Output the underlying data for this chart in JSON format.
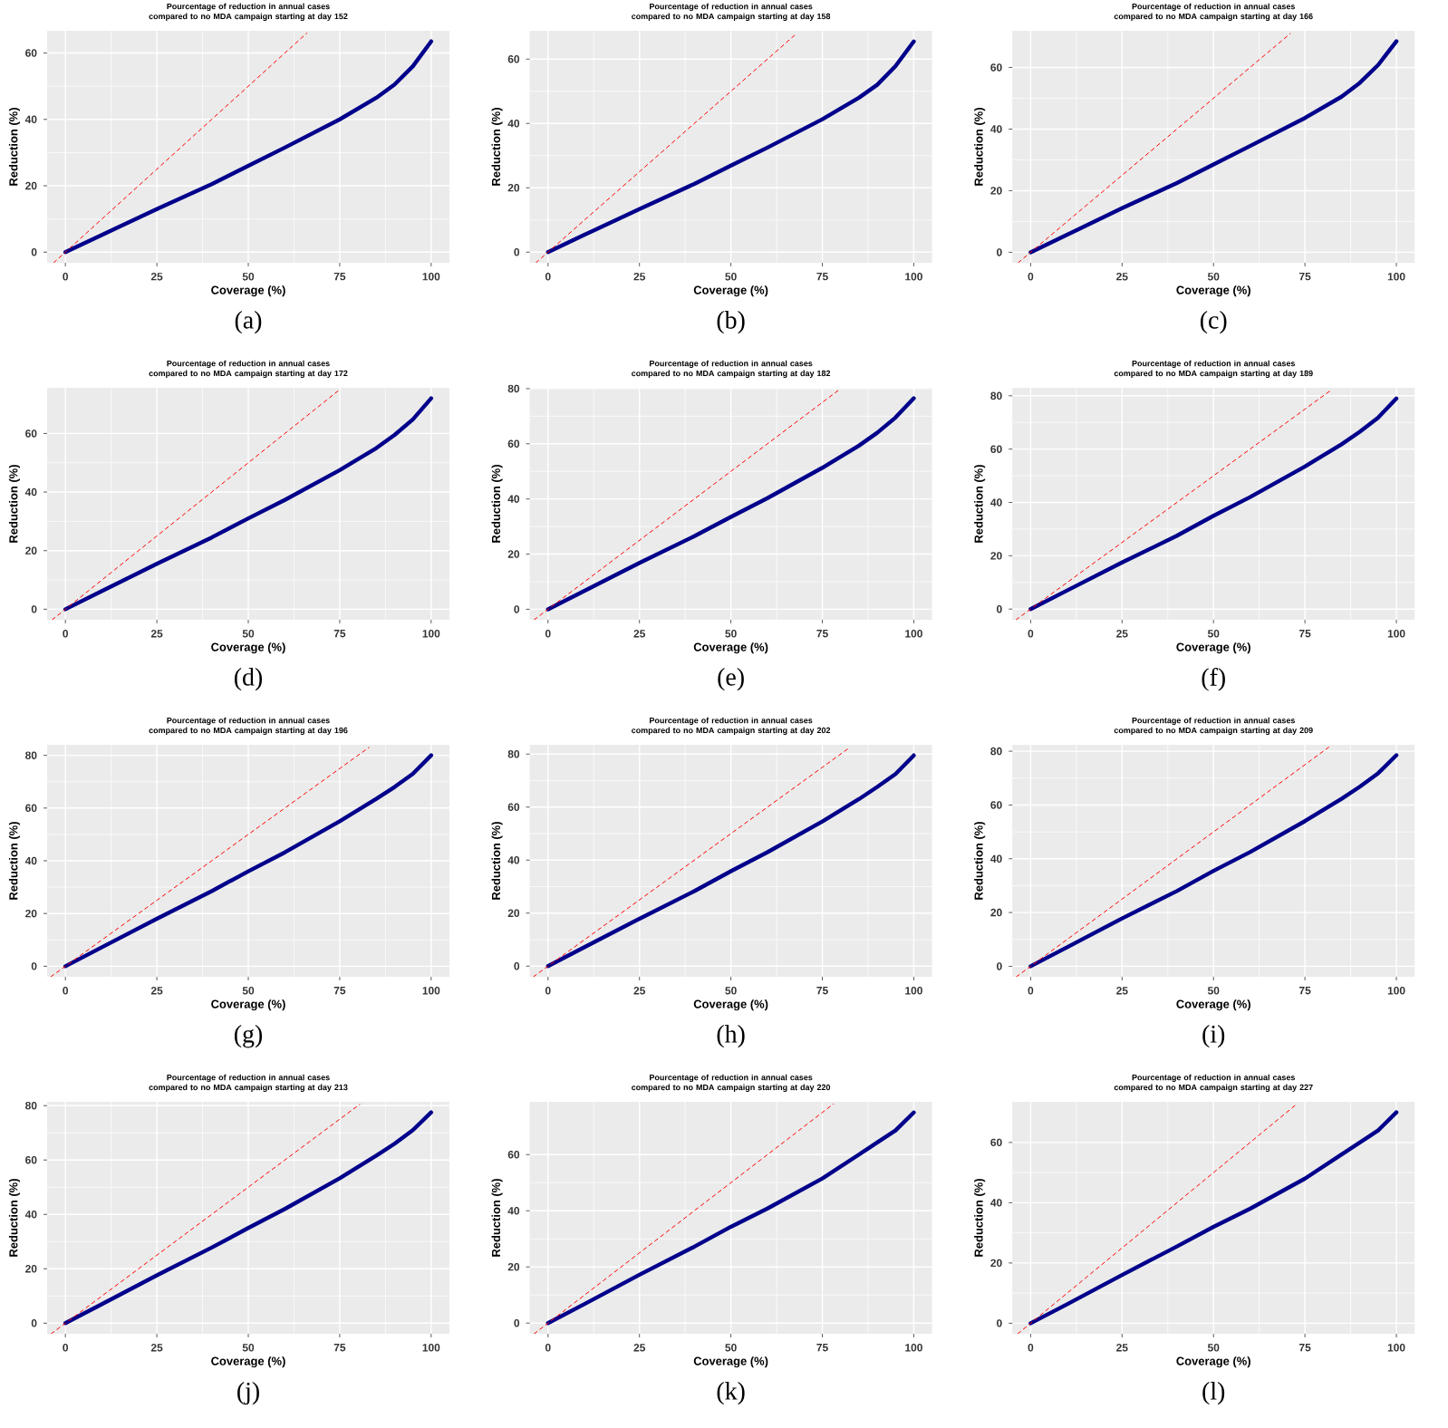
{
  "chart_data": [
    {
      "type": "line",
      "title": "Pourcentage of reduction in annual cases compared to no MDA campaign starting at day 152",
      "xlabel": "Coverage (%)",
      "ylabel": "Reduction (%)",
      "annotations": [
        "(a)"
      ],
      "x": [
        0,
        10,
        25,
        40,
        50,
        60,
        75,
        85,
        90,
        95,
        100
      ],
      "xlim": [
        -5,
        105
      ],
      "ylim": [
        -3.2,
        66.7
      ],
      "xticks": [
        0,
        25,
        50,
        75,
        100
      ],
      "yticks": [
        0,
        20,
        40,
        60
      ],
      "grid": true,
      "series": [
        {
          "color": "#00008b",
          "line_style": "solid",
          "values": [
            0,
            5.2,
            13,
            20.5,
            26,
            31.5,
            40,
            46.5,
            50.5,
            56,
            63.5
          ]
        },
        {
          "color": "#ff0000",
          "line_style": "dashed",
          "x": [
            -3.2,
            66
          ],
          "values": [
            -3.2,
            66
          ]
        }
      ]
    },
    {
      "type": "line",
      "title": "Pourcentage of reduction in annual cases compared to no MDA campaign starting at day 158",
      "xlabel": "Coverage (%)",
      "ylabel": "Reduction (%)",
      "annotations": [
        "(b)"
      ],
      "x": [
        0,
        10,
        25,
        40,
        50,
        60,
        75,
        85,
        90,
        95,
        100
      ],
      "xlim": [
        -5,
        105
      ],
      "ylim": [
        -3.3,
        68.8
      ],
      "xticks": [
        0,
        25,
        50,
        75,
        100
      ],
      "yticks": [
        0,
        20,
        40,
        60
      ],
      "grid": true,
      "series": [
        {
          "color": "#00008b",
          "line_style": "solid",
          "values": [
            0,
            5.4,
            13.4,
            21.2,
            26.9,
            32.5,
            41.3,
            48,
            52,
            57.8,
            65.5
          ]
        },
        {
          "color": "#ff0000",
          "line_style": "dashed",
          "x": [
            -3.3,
            68
          ],
          "values": [
            -3.3,
            68
          ]
        }
      ]
    },
    {
      "type": "line",
      "title": "Pourcentage of reduction in annual cases compared to no MDA campaign starting at day 166",
      "xlabel": "Coverage (%)",
      "ylabel": "Reduction (%)",
      "annotations": [
        "(c)"
      ],
      "x": [
        0,
        10,
        25,
        40,
        50,
        60,
        75,
        85,
        90,
        95,
        100
      ],
      "xlim": [
        -5,
        105
      ],
      "ylim": [
        -3.4,
        71.9
      ],
      "xticks": [
        0,
        25,
        50,
        75,
        100
      ],
      "yticks": [
        0,
        20,
        40,
        60
      ],
      "grid": true,
      "series": [
        {
          "color": "#00008b",
          "line_style": "solid",
          "values": [
            0,
            5.7,
            14.3,
            22.5,
            28.5,
            34.5,
            43.6,
            50.5,
            55,
            60.8,
            68.5
          ]
        },
        {
          "color": "#ff0000",
          "line_style": "dashed",
          "x": [
            -3.4,
            71
          ],
          "values": [
            -3.4,
            71
          ]
        }
      ]
    },
    {
      "type": "line",
      "title": "Pourcentage of reduction in annual cases compared to no MDA campaign starting at day 172",
      "xlabel": "Coverage (%)",
      "ylabel": "Reduction (%)",
      "annotations": [
        "(d)"
      ],
      "x": [
        0,
        10,
        25,
        40,
        50,
        60,
        75,
        85,
        90,
        95,
        100
      ],
      "xlim": [
        -5,
        105
      ],
      "ylim": [
        -3.6,
        75.6
      ],
      "xticks": [
        0,
        25,
        50,
        75,
        100
      ],
      "yticks": [
        0,
        20,
        40,
        60
      ],
      "grid": true,
      "series": [
        {
          "color": "#00008b",
          "line_style": "solid",
          "values": [
            0,
            6.2,
            15.5,
            24.5,
            31,
            37.3,
            47.5,
            55,
            59.5,
            64.8,
            72
          ]
        },
        {
          "color": "#ff0000",
          "line_style": "dashed",
          "x": [
            -3.6,
            75
          ],
          "values": [
            -3.6,
            75
          ]
        }
      ]
    },
    {
      "type": "line",
      "title": "Pourcentage of reduction in annual cases compared to no MDA campaign starting at day 182",
      "xlabel": "Coverage (%)",
      "ylabel": "Reduction (%)",
      "annotations": [
        "(e)"
      ],
      "x": [
        0,
        10,
        25,
        40,
        50,
        60,
        75,
        85,
        90,
        95,
        100
      ],
      "xlim": [
        -5,
        105
      ],
      "ylim": [
        -3.8,
        80.3
      ],
      "xticks": [
        0,
        25,
        50,
        75,
        100
      ],
      "yticks": [
        0,
        20,
        40,
        60,
        80
      ],
      "grid": true,
      "series": [
        {
          "color": "#00008b",
          "line_style": "solid",
          "values": [
            0,
            6.7,
            16.8,
            26.5,
            33.5,
            40.3,
            51.3,
            59.3,
            64,
            69.5,
            76.5
          ]
        },
        {
          "color": "#ff0000",
          "line_style": "dashed",
          "x": [
            -3.8,
            79.5
          ],
          "values": [
            -3.8,
            79.5
          ]
        }
      ]
    },
    {
      "type": "line",
      "title": "Pourcentage of reduction in annual cases compared to no MDA campaign starting at day 189",
      "xlabel": "Coverage (%)",
      "ylabel": "Reduction (%)",
      "annotations": [
        "(f)"
      ],
      "x": [
        0,
        10,
        25,
        40,
        50,
        60,
        75,
        85,
        90,
        95,
        100
      ],
      "xlim": [
        -5,
        105
      ],
      "ylim": [
        -4,
        83
      ],
      "xticks": [
        0,
        25,
        50,
        75,
        100
      ],
      "yticks": [
        0,
        20,
        40,
        60,
        80
      ],
      "grid": true,
      "series": [
        {
          "color": "#00008b",
          "line_style": "solid",
          "values": [
            0,
            7,
            17.5,
            27.5,
            35,
            42,
            53.5,
            61.8,
            66.5,
            71.8,
            79
          ]
        },
        {
          "color": "#ff0000",
          "line_style": "dashed",
          "x": [
            -4,
            82
          ],
          "values": [
            -4,
            82
          ]
        }
      ]
    },
    {
      "type": "line",
      "title": "Pourcentage of reduction in annual cases compared to no MDA campaign starting at day 196",
      "xlabel": "Coverage (%)",
      "ylabel": "Reduction (%)",
      "annotations": [
        "(g)"
      ],
      "x": [
        0,
        10,
        25,
        40,
        50,
        60,
        75,
        85,
        90,
        95,
        100
      ],
      "xlim": [
        -5,
        105
      ],
      "ylim": [
        -4,
        84
      ],
      "xticks": [
        0,
        25,
        50,
        75,
        100
      ],
      "yticks": [
        0,
        20,
        40,
        60,
        80
      ],
      "grid": true,
      "series": [
        {
          "color": "#00008b",
          "line_style": "solid",
          "values": [
            0,
            7.2,
            18,
            28.5,
            36,
            43.2,
            55,
            63.5,
            68,
            73,
            80
          ]
        },
        {
          "color": "#ff0000",
          "line_style": "dashed",
          "x": [
            -4,
            83
          ],
          "values": [
            -4,
            83
          ]
        }
      ]
    },
    {
      "type": "line",
      "title": "Pourcentage of reduction in annual cases compared to no MDA campaign starting at day 202",
      "xlabel": "Coverage (%)",
      "ylabel": "Reduction (%)",
      "annotations": [
        "(h)"
      ],
      "x": [
        0,
        10,
        25,
        40,
        50,
        60,
        75,
        85,
        90,
        95,
        100
      ],
      "xlim": [
        -5,
        105
      ],
      "ylim": [
        -4,
        83.5
      ],
      "xticks": [
        0,
        25,
        50,
        75,
        100
      ],
      "yticks": [
        0,
        20,
        40,
        60,
        80
      ],
      "grid": true,
      "series": [
        {
          "color": "#00008b",
          "line_style": "solid",
          "values": [
            0,
            7.2,
            17.9,
            28.3,
            35.8,
            43,
            54.6,
            63,
            67.6,
            72.5,
            79.5
          ]
        },
        {
          "color": "#ff0000",
          "line_style": "dashed",
          "x": [
            -4,
            82.5
          ],
          "values": [
            -4,
            82.5
          ]
        }
      ]
    },
    {
      "type": "line",
      "title": "Pourcentage of reduction in annual cases compared to no MDA campaign starting at day 209",
      "xlabel": "Coverage (%)",
      "ylabel": "Reduction (%)",
      "annotations": [
        "(i)"
      ],
      "x": [
        0,
        10,
        25,
        40,
        50,
        60,
        75,
        85,
        90,
        95,
        100
      ],
      "xlim": [
        -5,
        105
      ],
      "ylim": [
        -3.9,
        82.4
      ],
      "xticks": [
        0,
        25,
        50,
        75,
        100
      ],
      "yticks": [
        0,
        20,
        40,
        60,
        80
      ],
      "grid": true,
      "series": [
        {
          "color": "#00008b",
          "line_style": "solid",
          "values": [
            0,
            7.1,
            17.8,
            28,
            35.5,
            42.5,
            54,
            62.3,
            66.8,
            71.8,
            78.5
          ]
        },
        {
          "color": "#ff0000",
          "line_style": "dashed",
          "x": [
            -3.9,
            81.5
          ],
          "values": [
            -3.9,
            81.5
          ]
        }
      ]
    },
    {
      "type": "line",
      "title": "Pourcentage of reduction in annual cases compared to no MDA campaign starting at day 213",
      "xlabel": "Coverage (%)",
      "ylabel": "Reduction (%)",
      "annotations": [
        "(j)"
      ],
      "x": [
        0,
        10,
        25,
        40,
        50,
        60,
        75,
        85,
        90,
        95,
        100
      ],
      "xlim": [
        -5,
        105
      ],
      "ylim": [
        -3.9,
        81.4
      ],
      "xticks": [
        0,
        25,
        50,
        75,
        100
      ],
      "yticks": [
        0,
        20,
        40,
        60,
        80
      ],
      "grid": true,
      "series": [
        {
          "color": "#00008b",
          "line_style": "solid",
          "values": [
            0,
            7,
            17.6,
            27.8,
            35,
            42,
            53.3,
            61.6,
            66,
            71,
            77.5
          ]
        },
        {
          "color": "#ff0000",
          "line_style": "dashed",
          "x": [
            -3.9,
            80.5
          ],
          "values": [
            -3.9,
            80.5
          ]
        }
      ]
    },
    {
      "type": "line",
      "title": "Pourcentage of reduction in annual cases compared to no MDA campaign starting at day 220",
      "xlabel": "Coverage (%)",
      "ylabel": "Reduction (%)",
      "annotations": [
        "(k)"
      ],
      "x": [
        0,
        10,
        25,
        40,
        50,
        60,
        75,
        85,
        90,
        95,
        100
      ],
      "xlim": [
        -5,
        105
      ],
      "ylim": [
        -3.8,
        78.8
      ],
      "xticks": [
        0,
        25,
        50,
        75,
        100
      ],
      "yticks": [
        0,
        20,
        40,
        60
      ],
      "grid": true,
      "series": [
        {
          "color": "#00008b",
          "line_style": "solid",
          "values": [
            0,
            6.8,
            17.2,
            27.2,
            34.3,
            40.8,
            51.5,
            60,
            64.3,
            68.6,
            75
          ]
        },
        {
          "color": "#ff0000",
          "line_style": "dashed",
          "x": [
            -3.8,
            78
          ],
          "values": [
            -3.8,
            78
          ]
        }
      ]
    },
    {
      "type": "line",
      "title": "Pourcentage of reduction in annual cases compared to no MDA campaign starting at day 227",
      "xlabel": "Coverage (%)",
      "ylabel": "Reduction (%)",
      "annotations": [
        "(l)"
      ],
      "x": [
        0,
        10,
        25,
        40,
        50,
        60,
        75,
        85,
        90,
        95,
        100
      ],
      "xlim": [
        -5,
        105
      ],
      "ylim": [
        -3.5,
        73.5
      ],
      "xticks": [
        0,
        25,
        50,
        75,
        100
      ],
      "yticks": [
        0,
        20,
        40,
        60
      ],
      "grid": true,
      "series": [
        {
          "color": "#00008b",
          "line_style": "solid",
          "values": [
            0,
            6.3,
            16,
            25.5,
            32,
            38,
            48,
            56,
            60,
            64,
            70
          ]
        },
        {
          "color": "#ff0000",
          "line_style": "dashed",
          "x": [
            -3.5,
            72.5
          ],
          "values": [
            -3.5,
            72.5
          ]
        }
      ]
    }
  ]
}
